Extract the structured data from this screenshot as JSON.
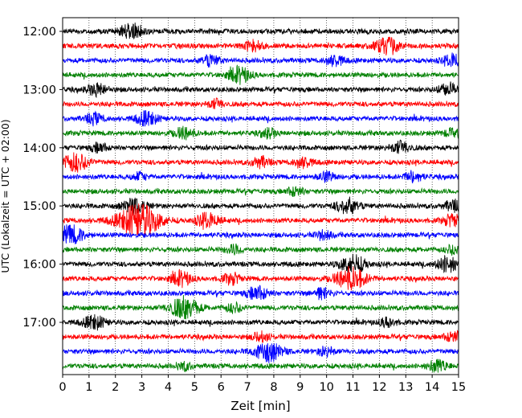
{
  "chart_data": {
    "type": "line",
    "xlabel": "Zeit  [min]",
    "ylabel": "UTC (Lokalzeit = UTC + 02:00)",
    "xlim": [
      0,
      15
    ],
    "x_ticks": [
      "0",
      "1",
      "2",
      "3",
      "4",
      "5",
      "6",
      "7",
      "8",
      "9",
      "10",
      "11",
      "12",
      "13",
      "14",
      "15"
    ],
    "y_tick_labels": [
      "12:00",
      "13:00",
      "14:00",
      "15:00",
      "16:00",
      "17:00"
    ],
    "traces_per_hour": 4,
    "trace_minutes": 15,
    "grid": "vertical dotted",
    "trace_colors": [
      "#000000",
      "#ff0000",
      "#0000ff",
      "#008000"
    ],
    "traces": [
      {
        "start": "12:00",
        "events": [
          [
            2.6,
            1.0
          ]
        ]
      },
      {
        "start": "12:15",
        "events": [
          [
            7.2,
            0.7
          ],
          [
            12.3,
            1.1
          ]
        ]
      },
      {
        "start": "12:30",
        "events": [
          [
            5.6,
            0.7
          ],
          [
            10.3,
            0.7
          ],
          [
            14.9,
            1.0
          ]
        ]
      },
      {
        "start": "12:45",
        "events": [
          [
            6.7,
            1.0
          ]
        ]
      },
      {
        "start": "13:00",
        "events": [
          [
            1.3,
            0.8
          ],
          [
            14.6,
            0.8
          ]
        ]
      },
      {
        "start": "13:15",
        "events": [
          [
            5.8,
            0.6
          ]
        ]
      },
      {
        "start": "13:30",
        "events": [
          [
            1.2,
            0.7
          ],
          [
            3.2,
            0.9
          ]
        ]
      },
      {
        "start": "13:45",
        "events": [
          [
            4.6,
            0.8
          ],
          [
            7.8,
            0.6
          ],
          [
            14.7,
            0.5
          ]
        ]
      },
      {
        "start": "14:00",
        "events": [
          [
            1.4,
            0.6
          ],
          [
            12.8,
            0.8
          ]
        ]
      },
      {
        "start": "14:15",
        "events": [
          [
            0.5,
            1.2
          ],
          [
            7.5,
            0.7
          ],
          [
            9.1,
            0.7
          ]
        ]
      },
      {
        "start": "14:30",
        "events": [
          [
            2.9,
            0.5
          ],
          [
            10.0,
            0.6
          ],
          [
            13.3,
            0.7
          ]
        ]
      },
      {
        "start": "14:45",
        "events": [
          [
            8.8,
            0.6
          ]
        ]
      },
      {
        "start": "15:00",
        "events": [
          [
            2.7,
            1.0
          ],
          [
            10.8,
            1.0
          ],
          [
            14.8,
            0.7
          ]
        ]
      },
      {
        "start": "15:15",
        "events": [
          [
            2.9,
            2.2
          ],
          [
            5.5,
            1.0
          ],
          [
            14.8,
            0.8
          ]
        ]
      },
      {
        "start": "15:30",
        "events": [
          [
            0.3,
            1.2
          ],
          [
            9.9,
            0.6
          ]
        ]
      },
      {
        "start": "15:45",
        "events": [
          [
            6.5,
            0.6
          ],
          [
            14.8,
            0.6
          ]
        ]
      },
      {
        "start": "16:00",
        "events": [
          [
            11.0,
            1.2
          ],
          [
            14.6,
            1.0
          ]
        ]
      },
      {
        "start": "16:15",
        "events": [
          [
            4.5,
            0.9
          ],
          [
            6.4,
            0.7
          ],
          [
            10.9,
            1.5
          ]
        ]
      },
      {
        "start": "16:30",
        "events": [
          [
            7.4,
            0.9
          ],
          [
            9.8,
            0.7
          ]
        ]
      },
      {
        "start": "16:45",
        "events": [
          [
            4.6,
            1.4
          ],
          [
            6.5,
            0.6
          ]
        ]
      },
      {
        "start": "17:00",
        "events": [
          [
            1.2,
            0.9
          ],
          [
            12.3,
            0.6
          ]
        ]
      },
      {
        "start": "17:15",
        "events": [
          [
            7.5,
            0.6
          ],
          [
            14.8,
            0.7
          ]
        ]
      },
      {
        "start": "17:30",
        "events": [
          [
            7.8,
            1.3
          ],
          [
            10.0,
            0.6
          ]
        ]
      },
      {
        "start": "17:45",
        "events": [
          [
            4.6,
            0.5
          ],
          [
            14.2,
            0.8
          ]
        ]
      }
    ]
  }
}
